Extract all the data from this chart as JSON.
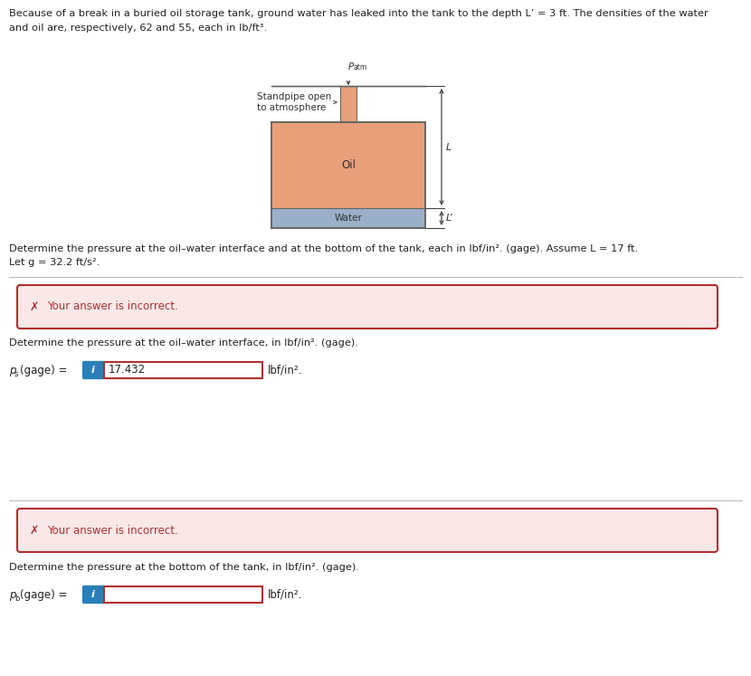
{
  "title_line1": "Because of a break in a buried oil storage tank, ground water has leaked into the tank to the depth L’ = 3 ft. The densities of the water",
  "title_line2": "and oil are, respectively, 62 and 55, each in lb/ft³.",
  "standpipe_label": "Standpipe open\nto atmosphere",
  "patm_label": "P",
  "patm_sub": "atm",
  "oil_label": "Oil",
  "water_label": "Water",
  "L_label": "L",
  "Lprime_label": "L’",
  "determine_text1": "Determine the pressure at the oil–water interface and at the bottom of the tank, each in lbf/in². (gage). Assume L = 17 ft.",
  "letg_text": "Let g = 32.2 ft/s².",
  "error_box1_text": "Your answer is incorrect.",
  "section1_text": "Determine the pressure at the oil–water interface, in lbf/in². (gage).",
  "ps_label": "p",
  "ps_sub": "s",
  "ps_value": "17.432",
  "ps_unit": "lbf/in².",
  "error_box2_text": "Your answer is incorrect.",
  "section2_text": "Determine the pressure at the bottom of the tank, in lbf/in². (gage).",
  "pb_label": "p",
  "pb_sub": "b",
  "pb_unit": "lbf/in².",
  "bg_color": "#ffffff",
  "oil_color": "#e8a07a",
  "water_color": "#9ab0c8",
  "standpipe_color": "#e8a07a",
  "error_bg": "#fae8e8",
  "error_border": "#b03030",
  "error_text_color": "#b03030",
  "info_btn_color": "#2980b9",
  "input_border_color": "#b03030",
  "divider_color": "#bbbbbb",
  "tank_border_color": "#666666",
  "dim_line_color": "#444444",
  "text_color": "#222222"
}
